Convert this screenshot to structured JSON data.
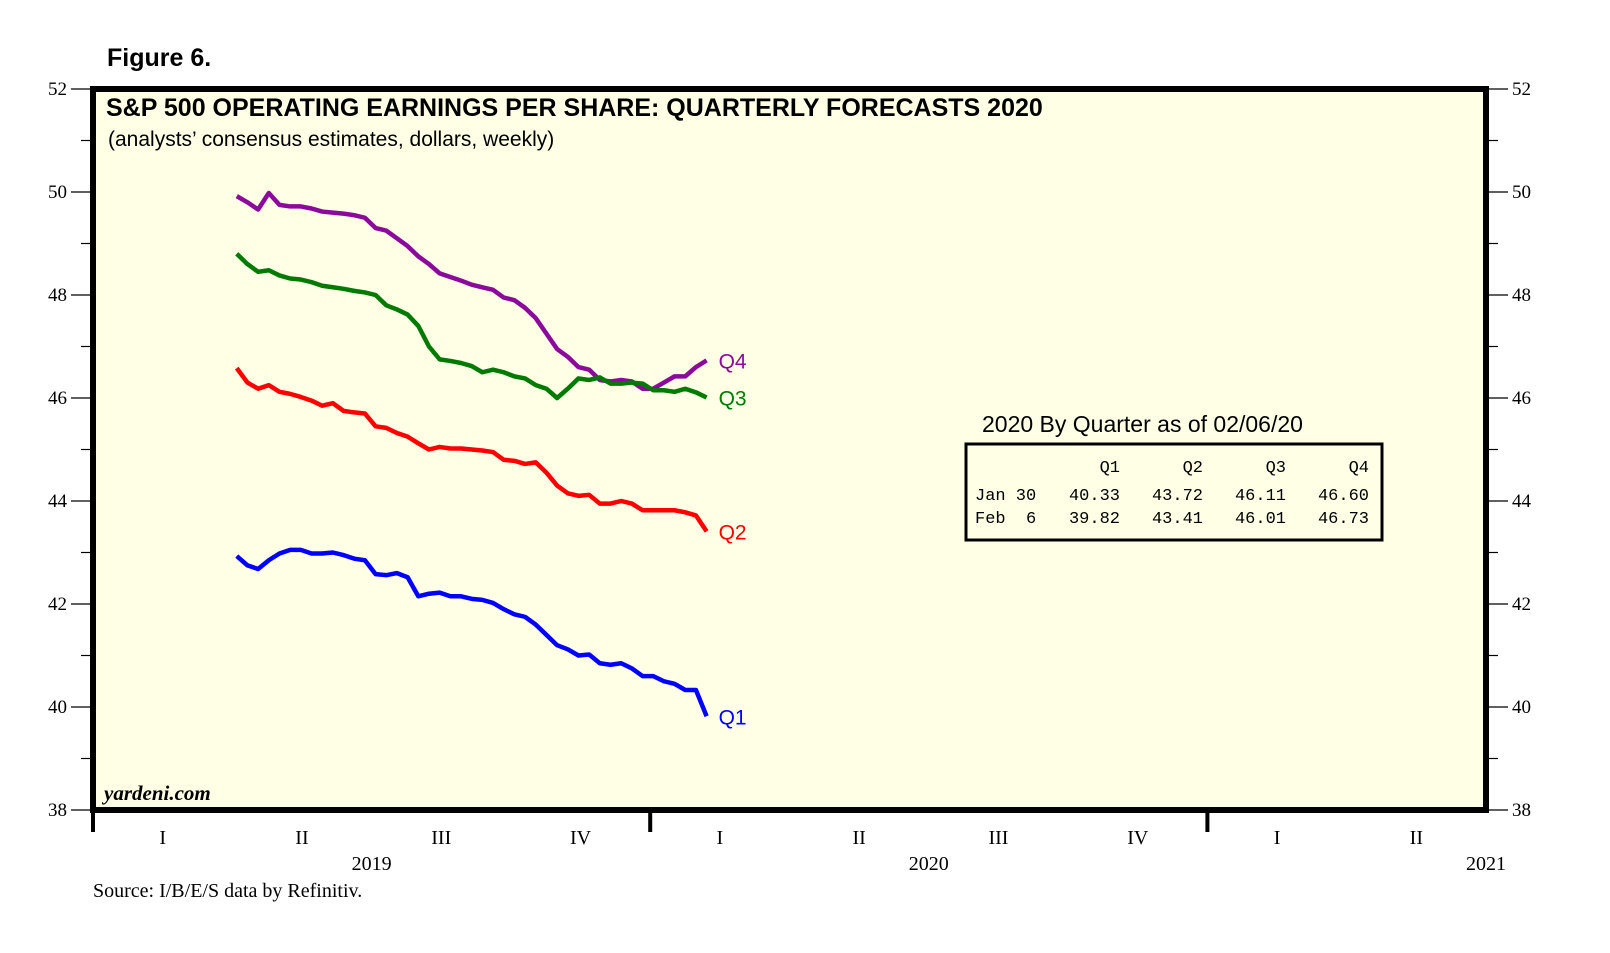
{
  "figure_label": "Figure 6.",
  "chart_data": {
    "type": "line",
    "title": "S&P 500 OPERATING EARNINGS PER SHARE: QUARTERLY FORECASTS 2020",
    "subtitle": "(analysts’ consensus estimates, dollars, weekly)",
    "xlabel": "",
    "ylabel": "",
    "ylim": [
      38,
      52
    ],
    "yticks": [
      38,
      40,
      42,
      44,
      46,
      48,
      50,
      52
    ],
    "ytick_labels": [
      "38",
      "40",
      "42",
      "44",
      "46",
      "48",
      "50",
      "52"
    ],
    "y_minor_step": 1,
    "xlim": [
      2019.0,
      2021.5
    ],
    "x_quarter_labels": [
      {
        "label": "I",
        "year": 2019,
        "q": 1
      },
      {
        "label": "II",
        "year": 2019,
        "q": 2
      },
      {
        "label": "III",
        "year": 2019,
        "q": 3
      },
      {
        "label": "IV",
        "year": 2019,
        "q": 4
      },
      {
        "label": "I",
        "year": 2020,
        "q": 1
      },
      {
        "label": "II",
        "year": 2020,
        "q": 2
      },
      {
        "label": "III",
        "year": 2020,
        "q": 3
      },
      {
        "label": "IV",
        "year": 2020,
        "q": 4
      },
      {
        "label": "I",
        "year": 2021,
        "q": 1
      },
      {
        "label": "II",
        "year": 2021,
        "q": 2
      }
    ],
    "x_year_labels": [
      "2019",
      "2020",
      "2021"
    ],
    "x_start": 2019.258,
    "x_step_weeks": 1,
    "grid": false,
    "background": "#ffffe6",
    "series": [
      {
        "name": "Q4",
        "color": "#8b0a9b",
        "label_offset": 0,
        "values": [
          49.92,
          49.8,
          49.66,
          49.98,
          49.75,
          49.72,
          49.72,
          49.68,
          49.62,
          49.6,
          49.58,
          49.55,
          49.5,
          49.3,
          49.25,
          49.1,
          48.95,
          48.75,
          48.6,
          48.42,
          48.35,
          48.28,
          48.2,
          48.15,
          48.1,
          47.95,
          47.9,
          47.75,
          47.55,
          47.25,
          46.95,
          46.8,
          46.6,
          46.55,
          46.35,
          46.32,
          46.35,
          46.32,
          46.18,
          46.18,
          46.3,
          46.42,
          46.42,
          46.6,
          46.73
        ]
      },
      {
        "name": "Q3",
        "color": "#007a00",
        "label_offset": 0,
        "values": [
          48.8,
          48.6,
          48.45,
          48.48,
          48.38,
          48.32,
          48.3,
          48.25,
          48.18,
          48.15,
          48.12,
          48.08,
          48.05,
          48.0,
          47.8,
          47.72,
          47.62,
          47.4,
          47.0,
          46.75,
          46.72,
          46.68,
          46.62,
          46.5,
          46.55,
          46.5,
          46.42,
          46.38,
          46.25,
          46.18,
          46.0,
          46.18,
          46.38,
          46.35,
          46.4,
          46.28,
          46.28,
          46.3,
          46.28,
          46.15,
          46.15,
          46.12,
          46.18,
          46.11,
          46.01
        ]
      },
      {
        "name": "Q2",
        "color": "#ff0000",
        "label_offset": 0,
        "values": [
          46.58,
          46.3,
          46.18,
          46.25,
          46.12,
          46.08,
          46.02,
          45.95,
          45.85,
          45.9,
          45.75,
          45.72,
          45.7,
          45.45,
          45.42,
          45.32,
          45.25,
          45.12,
          45.0,
          45.05,
          45.02,
          45.02,
          45.0,
          44.98,
          44.95,
          44.8,
          44.78,
          44.72,
          44.75,
          44.55,
          44.3,
          44.15,
          44.1,
          44.12,
          43.95,
          43.95,
          44.0,
          43.95,
          43.82,
          43.82,
          43.82,
          43.82,
          43.78,
          43.72,
          43.41
        ]
      },
      {
        "name": "Q1",
        "color": "#0000ff",
        "label_offset": 0,
        "values": [
          42.93,
          42.75,
          42.68,
          42.85,
          42.98,
          43.05,
          43.05,
          42.98,
          42.98,
          43.0,
          42.95,
          42.88,
          42.85,
          42.58,
          42.56,
          42.6,
          42.52,
          42.15,
          42.2,
          42.22,
          42.15,
          42.15,
          42.1,
          42.08,
          42.02,
          41.9,
          41.8,
          41.75,
          41.6,
          41.4,
          41.2,
          41.12,
          41.0,
          41.02,
          40.85,
          40.82,
          40.85,
          40.75,
          40.6,
          40.6,
          40.5,
          40.45,
          40.33,
          40.33,
          39.82
        ]
      }
    ],
    "annotations": {
      "brand": "yardeni.com",
      "source": "Source: I/B/E/S data by Refinitiv."
    },
    "table": {
      "title": "2020 By Quarter as of 02/06/20",
      "columns": [
        "",
        "Q1",
        "Q2",
        "Q3",
        "Q4"
      ],
      "rows": [
        [
          "Jan 30",
          "40.33",
          "43.72",
          "46.11",
          "46.60"
        ],
        [
          "Feb  6",
          "39.82",
          "43.41",
          "46.01",
          "46.73"
        ]
      ]
    }
  }
}
